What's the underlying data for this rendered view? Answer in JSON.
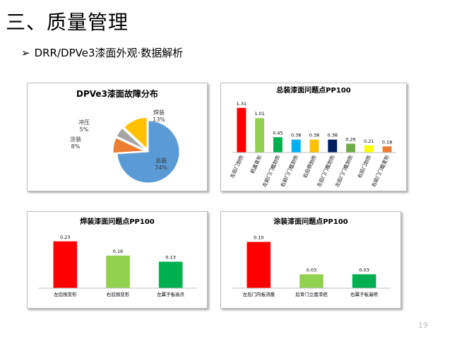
{
  "slide": {
    "title": "三、质量管理",
    "subtitle": "DRR/DPVe3漆面外观·数据解析",
    "bullet_icon": "arrow-bullet-icon",
    "page_number": "19"
  },
  "chart_data": [
    {
      "type": "pie",
      "title": "DPVe3漆面故障分布",
      "slices": [
        {
          "label": "总装",
          "value": 74,
          "display": "74%",
          "color": "#5b9bd5"
        },
        {
          "label": "涂装",
          "value": 8,
          "display": "8%",
          "color": "#ed7d31"
        },
        {
          "label": "冲压",
          "value": 5,
          "display": "5%",
          "color": "#a5a5a5"
        },
        {
          "label": "焊装",
          "value": 13,
          "display": "13%",
          "color": "#ffc000"
        }
      ]
    },
    {
      "type": "bar",
      "title": "总装漆面问题点PP100",
      "categories": [
        "左后门划伤",
        "机盖变形",
        "左前门门槛划伤",
        "右前门门槛划伤",
        "右后侧划伤",
        "左后门门槛划伤",
        "左后门门槛划伤",
        "右后门划伤",
        "右前门门槛变形"
      ],
      "values": [
        1.31,
        1.01,
        0.45,
        0.38,
        0.38,
        0.38,
        0.26,
        0.21,
        0.18
      ],
      "labels": [
        "1.31",
        "1.01",
        "0.45",
        "0.38",
        "0.38",
        "0.38",
        "0.26",
        "0.21",
        "0.18"
      ],
      "colors": [
        "#ff0000",
        "#92d050",
        "#00b050",
        "#00b0f0",
        "#ffc000",
        "#002060",
        "#70ad47",
        "#ffff00",
        "#ed7d31"
      ],
      "ylim": [
        0,
        1.45
      ]
    },
    {
      "type": "bar",
      "title": "焊装漆面问题点PP100",
      "categories": [
        "左后围变形",
        "右后围变形",
        "左翼子板高点"
      ],
      "values": [
        0.23,
        0.16,
        0.13
      ],
      "labels": [
        "0.23",
        "0.16",
        "0.13"
      ],
      "colors": [
        "#ff0000",
        "#92d050",
        "#00b050"
      ],
      "ylim": [
        0,
        0.25
      ]
    },
    {
      "type": "bar",
      "title": "涂装漆面问题点PP100",
      "categories": [
        "左后门内板流痕",
        "后背门立面漆疤",
        "右翼子板漏喷"
      ],
      "values": [
        0.1,
        0.03,
        0.03
      ],
      "labels": [
        "0.10",
        "0.03",
        "0.03"
      ],
      "colors": [
        "#ff0000",
        "#92d050",
        "#00b050"
      ],
      "ylim": [
        0,
        0.11
      ]
    }
  ]
}
